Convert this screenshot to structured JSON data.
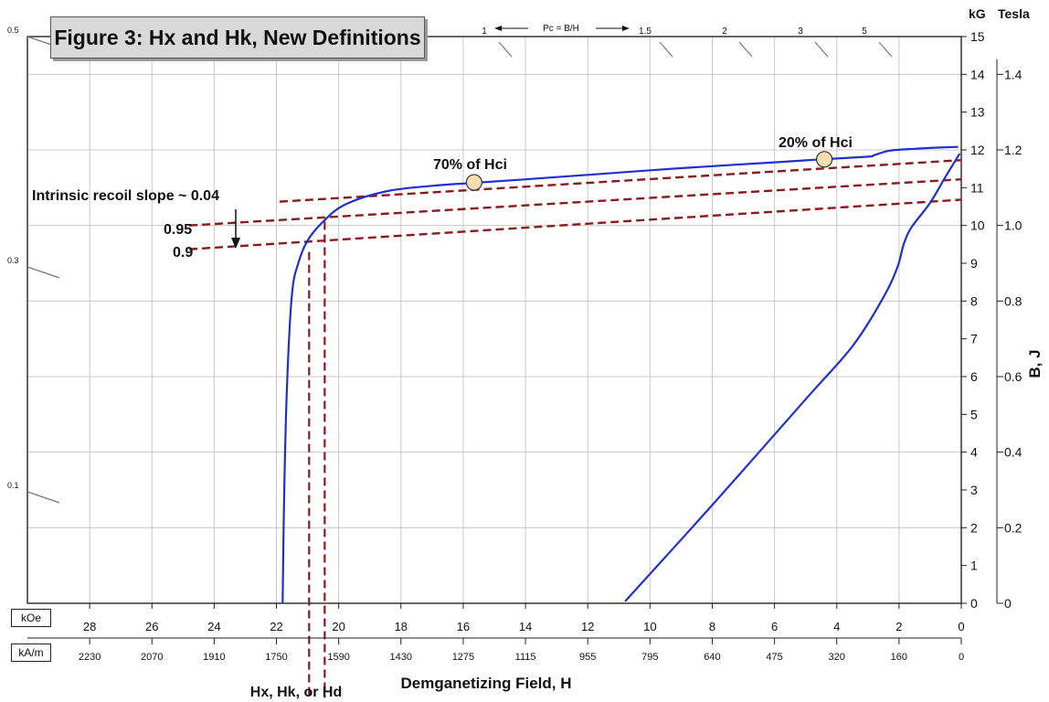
{
  "chart_data": {
    "type": "line",
    "title": "Figure 3: Hx and Hk, New Definitions",
    "xlabel": "Demganetizing Field, H",
    "ylabel": "B, J",
    "x_unit_primary": "kOe",
    "x_unit_secondary": "kA/m",
    "y_unit_primary": "kG",
    "y_unit_secondary": "Tesla",
    "xlim": [
      0,
      30
    ],
    "ylim": [
      0,
      15
    ],
    "x_ticks_koe": [
      "28",
      "26",
      "24",
      "22",
      "20",
      "18",
      "16",
      "14",
      "12",
      "10",
      "8",
      "6",
      "4",
      "2",
      "0"
    ],
    "x_ticks_kam": [
      "2230",
      "2070",
      "1910",
      "1750",
      "1590",
      "1430",
      "1275",
      "1115",
      "955",
      "795",
      "640",
      "475",
      "320",
      "160",
      "0"
    ],
    "y_ticks_kg": [
      "0",
      "1",
      "2",
      "3",
      "4",
      "5",
      "6",
      "7",
      "8",
      "9",
      "10",
      "11",
      "12",
      "13",
      "14",
      "15"
    ],
    "y_ticks_tesla": [
      "0",
      "0.2",
      "0.4",
      "0.6",
      "0.8",
      "1.0",
      "1.2",
      "1.4"
    ],
    "left_scale_labels": [
      "0.5",
      "0.3",
      "0.1"
    ],
    "pc_scale": {
      "caption": "Pc = B/H",
      "ticks": [
        "1",
        "1.5",
        "2",
        "3",
        "5"
      ]
    },
    "series": [
      {
        "kind": "intrinsic",
        "points": [
          [
            21.8,
            0
          ],
          [
            21.75,
            3
          ],
          [
            21.65,
            6
          ],
          [
            21.5,
            8.2
          ],
          [
            21.3,
            9.0
          ],
          [
            21.0,
            9.6
          ],
          [
            20.5,
            10.1
          ],
          [
            19.8,
            10.55
          ],
          [
            18.5,
            10.9
          ],
          [
            17.0,
            11.05
          ],
          [
            15.8,
            11.12
          ],
          [
            14,
            11.22
          ],
          [
            12,
            11.34
          ],
          [
            10,
            11.46
          ],
          [
            8,
            11.57
          ],
          [
            6,
            11.67
          ],
          [
            4.5,
            11.75
          ],
          [
            3,
            11.82
          ],
          [
            2.8,
            11.86
          ],
          [
            2.3,
            11.98
          ],
          [
            1.5,
            12.03
          ],
          [
            0.8,
            12.06
          ],
          [
            0.1,
            12.08
          ]
        ]
      },
      {
        "kind": "normal",
        "points": [
          [
            10.8,
            0.05
          ],
          [
            8,
            2.6
          ],
          [
            5,
            5.4
          ],
          [
            3.5,
            6.8
          ],
          [
            2.5,
            8.1
          ],
          [
            2.05,
            8.9
          ],
          [
            1.85,
            9.5
          ],
          [
            1.6,
            9.95
          ],
          [
            1.0,
            10.6
          ],
          [
            0.5,
            11.3
          ],
          [
            0.05,
            11.9
          ]
        ]
      }
    ],
    "reference_lines": [
      {
        "label": "",
        "from": [
          21.9,
          10.63
        ],
        "to": [
          -2.6,
          11.86
        ]
      },
      {
        "label": "0.95",
        "from": [
          24.8,
          10.0
        ],
        "to": [
          -2.6,
          11.35
        ]
      },
      {
        "label": "0.9",
        "from": [
          24.8,
          9.37
        ],
        "to": [
          -2.6,
          10.82
        ]
      }
    ],
    "vertical_markers": [
      {
        "x": 20.95,
        "from_y": 9.3,
        "to_y": -2.5
      },
      {
        "x": 20.45,
        "from_y": 10.1,
        "to_y": -2.5
      }
    ],
    "markers": [
      {
        "label": "70% of Hci",
        "x": 15.65,
        "y": 11.14
      },
      {
        "label": "20% of Hci",
        "x": 4.4,
        "y": 11.75
      }
    ],
    "annotations": {
      "recoil_slope": "Intrinsic recoil slope ~ 0.04",
      "h_label": "Hx, Hk, or Hd"
    },
    "colors": {
      "curve": "#1f2fd0",
      "reference": "#8b1a1a",
      "marker_fill": "#f5deb0",
      "grid": "#c8c8c8",
      "title_box": "#d9d9d9"
    }
  }
}
